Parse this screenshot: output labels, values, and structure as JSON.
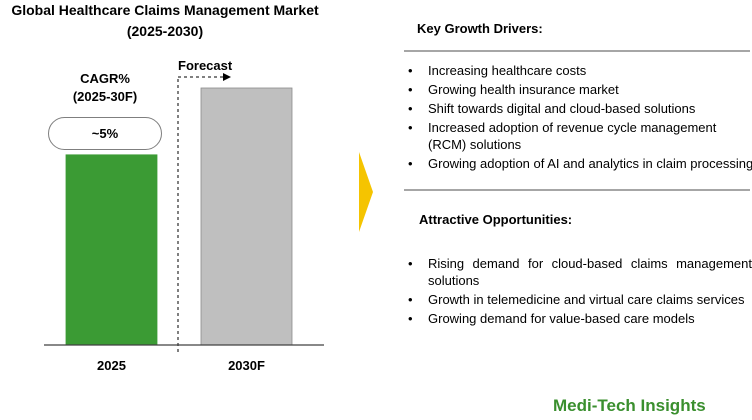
{
  "title": {
    "line1": "Global Healthcare Claims Management Market",
    "line2": "(2025-2030)"
  },
  "cagr": {
    "label_line1": "CAGR%",
    "label_line2": "(2025-30F)",
    "value": "~5%"
  },
  "forecast_label": "Forecast",
  "chart_data": {
    "type": "bar",
    "title": "Global Healthcare Claims Management Market (2025-2030)",
    "categories": [
      "2025",
      "2030F"
    ],
    "values": [
      0.74,
      1.0
    ],
    "value_note": "relative bar heights (no axis shown)",
    "colors": [
      "#3b9b34",
      "#bfbfbf"
    ],
    "xlabel": "",
    "ylabel": "",
    "ylim": [
      0,
      1
    ]
  },
  "drivers": {
    "heading": "Key Growth Drivers:",
    "items": [
      "Increasing healthcare costs",
      "Growing health insurance market",
      "Shift towards digital and cloud-based solutions",
      "Increased adoption of revenue cycle management (RCM) solutions",
      "Growing adoption of AI and analytics in claim processing"
    ]
  },
  "opportunities": {
    "heading": "Attractive Opportunities:",
    "items": [
      "Rising demand for cloud-based claims management solutions",
      "Growth in telemedicine and virtual care claims services",
      "Growing demand for value-based care models"
    ]
  },
  "brand": "Medi-Tech Insights",
  "colors": {
    "accent_arrow": "#f5c400",
    "brand_green": "#3a8f2e"
  }
}
